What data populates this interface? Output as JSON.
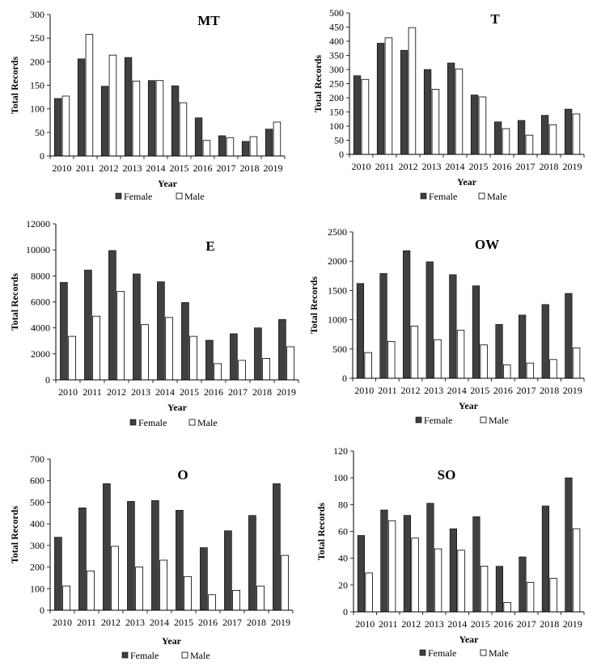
{
  "legend_labels": {
    "female": "Female",
    "male": "Male"
  },
  "colors": {
    "female": "#404040",
    "male": "#ffffff",
    "stroke": "#000000"
  },
  "chart_data": [
    {
      "type": "bar",
      "title": "MT",
      "xlabel": "Year",
      "ylabel": "Total Records",
      "categories": [
        "2010",
        "2011",
        "2012",
        "2013",
        "2014",
        "2015",
        "2016",
        "2017",
        "2018",
        "2019"
      ],
      "ylim": [
        0,
        300
      ],
      "yticks": [
        0,
        50,
        100,
        150,
        200,
        250,
        300
      ],
      "series": [
        {
          "name": "Female",
          "values": [
            122,
            206,
            148,
            209,
            160,
            149,
            81,
            43,
            31,
            57
          ]
        },
        {
          "name": "Male",
          "values": [
            127,
            258,
            214,
            159,
            160,
            113,
            33,
            39,
            41,
            72
          ]
        }
      ]
    },
    {
      "type": "bar",
      "title": "T",
      "xlabel": "Year",
      "ylabel": "Total Records",
      "categories": [
        "2010",
        "2011",
        "2012",
        "2013",
        "2014",
        "2015",
        "2016",
        "2017",
        "2018",
        "2019"
      ],
      "ylim": [
        0,
        500
      ],
      "yticks": [
        0,
        50,
        100,
        150,
        200,
        250,
        300,
        350,
        400,
        450,
        500
      ],
      "series": [
        {
          "name": "Female",
          "values": [
            278,
            393,
            368,
            300,
            323,
            210,
            115,
            120,
            138,
            160
          ]
        },
        {
          "name": "Male",
          "values": [
            265,
            412,
            448,
            230,
            302,
            203,
            91,
            68,
            105,
            143
          ]
        }
      ]
    },
    {
      "type": "bar",
      "title": "E",
      "xlabel": "Year",
      "ylabel": "Total Records",
      "categories": [
        "2010",
        "2011",
        "2012",
        "2013",
        "2014",
        "2015",
        "2016",
        "2017",
        "2018",
        "2019"
      ],
      "ylim": [
        0,
        12000
      ],
      "yticks": [
        0,
        2000,
        4000,
        6000,
        8000,
        10000,
        12000
      ],
      "series": [
        {
          "name": "Female",
          "values": [
            7500,
            8450,
            9950,
            8150,
            7550,
            5950,
            3050,
            3550,
            4000,
            4650
          ]
        },
        {
          "name": "Male",
          "values": [
            3350,
            4900,
            6800,
            4250,
            4800,
            3350,
            1250,
            1500,
            1650,
            2550
          ]
        }
      ]
    },
    {
      "type": "bar",
      "title": "OW",
      "xlabel": "Year",
      "ylabel": "Total Records",
      "categories": [
        "2010",
        "2011",
        "2012",
        "2013",
        "2014",
        "2015",
        "2016",
        "2017",
        "2018",
        "2019"
      ],
      "ylim": [
        0,
        2500
      ],
      "yticks": [
        0,
        500,
        1000,
        1500,
        2000,
        2500
      ],
      "series": [
        {
          "name": "Female",
          "values": [
            1620,
            1790,
            2180,
            1990,
            1770,
            1580,
            920,
            1080,
            1260,
            1450
          ]
        },
        {
          "name": "Male",
          "values": [
            440,
            630,
            890,
            660,
            820,
            570,
            230,
            260,
            320,
            520
          ]
        }
      ]
    },
    {
      "type": "bar",
      "title": "O",
      "xlabel": "Year",
      "ylabel": "Total Records",
      "categories": [
        "2010",
        "2011",
        "2012",
        "2013",
        "2014",
        "2015",
        "2016",
        "2017",
        "2018",
        "2019"
      ],
      "ylim": [
        0,
        700
      ],
      "yticks": [
        0,
        100,
        200,
        300,
        400,
        500,
        600,
        700
      ],
      "series": [
        {
          "name": "Female",
          "values": [
            338,
            474,
            586,
            504,
            508,
            463,
            290,
            368,
            439,
            586
          ]
        },
        {
          "name": "Male",
          "values": [
            112,
            182,
            296,
            200,
            232,
            156,
            72,
            92,
            112,
            254
          ]
        }
      ]
    },
    {
      "type": "bar",
      "title": "SO",
      "xlabel": "Year",
      "ylabel": "Total Records",
      "categories": [
        "2010",
        "2011",
        "2012",
        "2013",
        "2014",
        "2015",
        "2016",
        "2017",
        "2018",
        "2019"
      ],
      "ylim": [
        0,
        120
      ],
      "yticks": [
        0,
        20,
        40,
        60,
        80,
        100,
        120
      ],
      "series": [
        {
          "name": "Female",
          "values": [
            57,
            76,
            72,
            81,
            62,
            71,
            34,
            41,
            79,
            100
          ]
        },
        {
          "name": "Male",
          "values": [
            29,
            68,
            55,
            47,
            46,
            34,
            7,
            22,
            25,
            62
          ]
        }
      ]
    }
  ]
}
